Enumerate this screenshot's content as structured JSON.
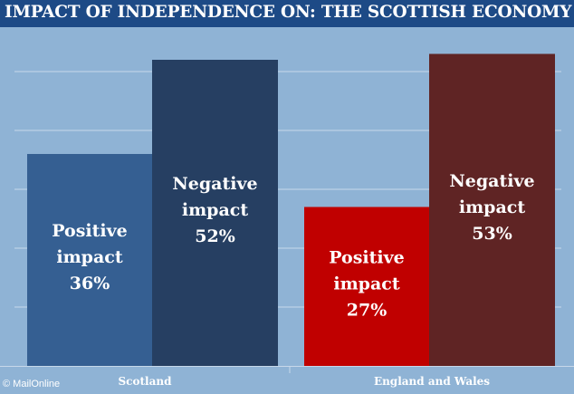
{
  "title": "IMPACT OF INDEPENDENCE ON: THE SCOTTISH ECONOMY",
  "credit": "© MailOnline",
  "colors": {
    "background": "#8fb3d5",
    "title_bar": "#1d4a86",
    "gridline": "#c7d8ea",
    "label_text": "#ffffff"
  },
  "chart_data": {
    "type": "bar",
    "title": "IMPACT OF INDEPENDENCE ON: THE SCOTTISH ECONOMY",
    "xlabel": "",
    "ylabel": "",
    "ylim": [
      0,
      60
    ],
    "grid": true,
    "legend": "none",
    "categories": [
      "Scotland",
      "England and Wales"
    ],
    "bars": [
      {
        "category": "Scotland",
        "label": [
          "Positive",
          "impact",
          "36%"
        ],
        "value": 36,
        "color": "#355f92"
      },
      {
        "category": "Scotland",
        "label": [
          "Negative",
          "impact",
          "52%"
        ],
        "value": 52,
        "color": "#263f62"
      },
      {
        "category": "England and Wales",
        "label": [
          "Positive",
          "impact",
          "27%"
        ],
        "value": 27,
        "color": "#c00000"
      },
      {
        "category": "England and Wales",
        "label": [
          "Negative",
          "impact",
          "53%"
        ],
        "value": 53,
        "color": "#5f2424"
      }
    ]
  }
}
